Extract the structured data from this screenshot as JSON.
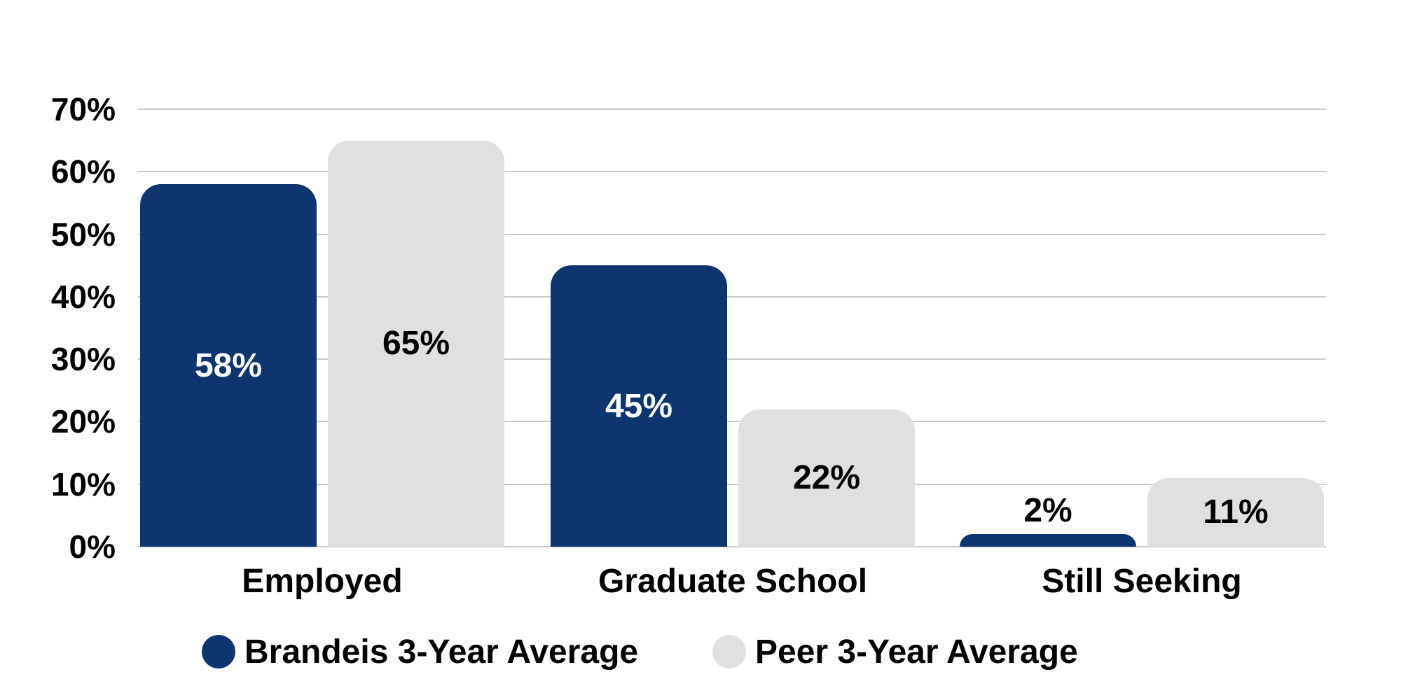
{
  "chart_data": {
    "type": "bar",
    "title": "",
    "categories": [
      "Employed",
      "Graduate School",
      "Still Seeking"
    ],
    "series": [
      {
        "name": "Brandeis 3-Year Average",
        "color": "#0f3570",
        "label_color": "#ffffff",
        "values": [
          58,
          45,
          2
        ]
      },
      {
        "name": "Peer 3-Year Average",
        "color": "#dfe0e0",
        "label_color": "#000000",
        "values": [
          65,
          22,
          11
        ]
      }
    ],
    "value_suffix": "%",
    "y_ticks": [
      "70%",
      "60%",
      "50%",
      "40%",
      "30%",
      "20%",
      "10%",
      "0%"
    ],
    "ylim": [
      0,
      70
    ],
    "grid": true,
    "legend_position": "bottom"
  },
  "colors": {
    "background": "#ffffff",
    "gridline": "#c9cacb",
    "axis_text": "#000000"
  }
}
